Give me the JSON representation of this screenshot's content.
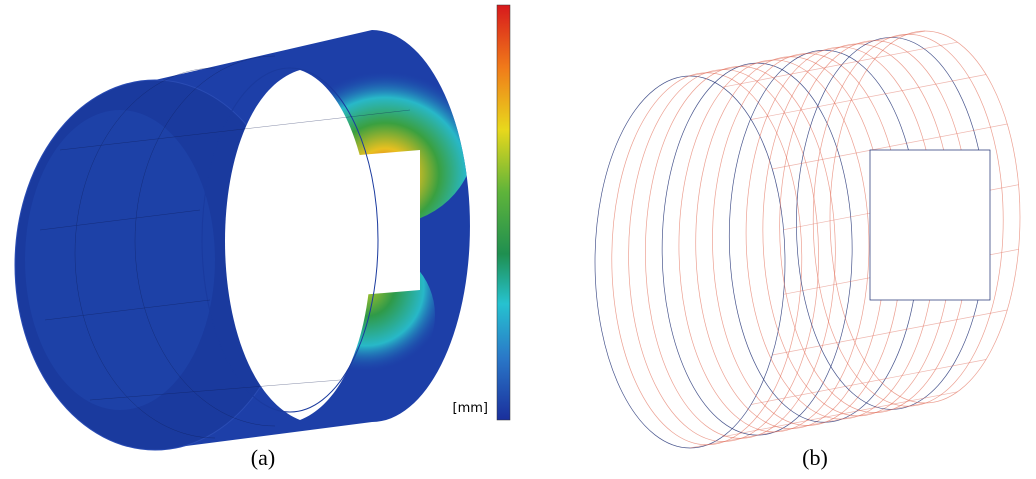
{
  "figure": {
    "colorbar_unit": "[mm]",
    "panels": [
      {
        "label": "(a)"
      },
      {
        "label": "(b)"
      }
    ]
  }
}
